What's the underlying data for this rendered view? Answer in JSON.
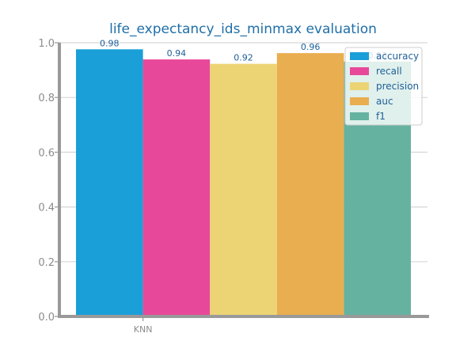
{
  "chart_data": {
    "type": "bar",
    "title": "life_expectancy_ids_minmax evaluation",
    "xlabel": "",
    "ylabel": "",
    "categories": [
      "KNN"
    ],
    "series": [
      {
        "name": "accuracy",
        "values": [
          0.976
        ],
        "label": "0.98",
        "color": "#1a9fd8"
      },
      {
        "name": "recall",
        "values": [
          0.939
        ],
        "label": "0.94",
        "color": "#e8489a"
      },
      {
        "name": "precision",
        "values": [
          0.923
        ],
        "label": "0.92",
        "color": "#ecd475"
      },
      {
        "name": "auc",
        "values": [
          0.962
        ],
        "label": "0.96",
        "color": "#e9ae4f"
      },
      {
        "name": "f1",
        "values": [
          0.931
        ],
        "label": "0.93",
        "color": "#66b2a0"
      }
    ],
    "ylim": [
      0,
      1.0
    ],
    "yticks": [
      "0.0",
      "0.2",
      "0.4",
      "0.6",
      "0.8",
      "1.0"
    ],
    "grid": true,
    "legend_position": "top-right"
  },
  "colors": {
    "title": "#1e6fa8",
    "data_label": "#1e5f99",
    "legend_text": "#1e5f99",
    "axis": "#999999",
    "grid": "#d6d6d6"
  }
}
